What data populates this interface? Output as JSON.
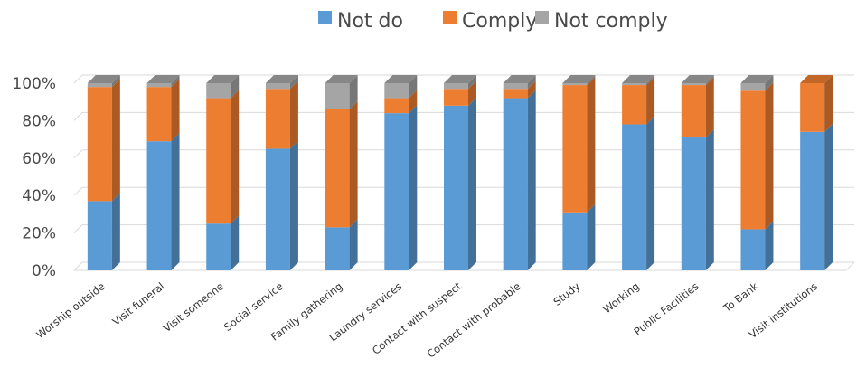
{
  "chart_data": {
    "type": "bar",
    "stacked": true,
    "percent": true,
    "categories": [
      "Worship outside",
      "Visit funeral",
      "Visit someone",
      "Social service",
      "Family gathering",
      "Laundry services",
      "Contact with suspect",
      "Contact with probable",
      "Study",
      "Working",
      "Public Facilities",
      "To Bank",
      "Visit institutions"
    ],
    "series": [
      {
        "name": "Not do",
        "color": "#5b9bd5",
        "values": [
          37,
          69,
          25,
          65,
          23,
          84,
          88,
          92,
          31,
          78,
          71,
          22,
          74
        ]
      },
      {
        "name": "Comply",
        "color": "#ed7d31",
        "values": [
          61,
          29,
          67,
          32,
          63,
          8,
          9,
          5,
          68,
          21,
          28,
          74,
          26
        ]
      },
      {
        "name": "Not comply",
        "color": "#a5a5a5",
        "values": [
          2,
          2,
          8,
          3,
          14,
          8,
          3,
          3,
          1,
          1,
          1,
          4,
          0
        ]
      }
    ],
    "y_ticks": [
      "0%",
      "20%",
      "40%",
      "60%",
      "80%",
      "100%"
    ],
    "ylim": [
      0,
      100
    ],
    "legend_position": "top-center",
    "grid": true
  }
}
